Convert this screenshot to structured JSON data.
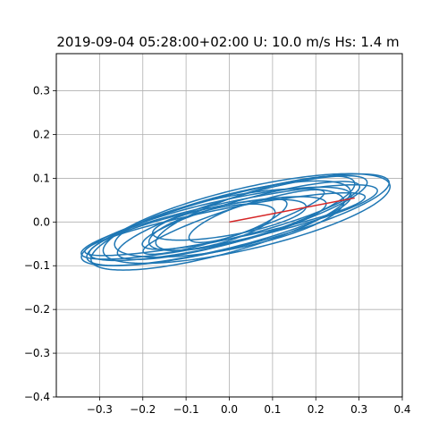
{
  "chart_data": {
    "type": "line",
    "title": "2019-09-04 05:28:00+02:00 U: 10.0 m/s Hs: 1.4 m",
    "xlabel": "",
    "ylabel": "",
    "xlim": [
      -0.4,
      0.4
    ],
    "ylim": [
      -0.4,
      0.385
    ],
    "xticks": [
      -0.3,
      -0.2,
      -0.1,
      0.0,
      0.1,
      0.2,
      0.3,
      0.4
    ],
    "yticks": [
      -0.4,
      -0.3,
      -0.2,
      -0.1,
      0.0,
      0.1,
      0.2,
      0.3
    ],
    "xtick_labels": [
      "−0.3",
      "−0.2",
      "−0.1",
      "0.0",
      "0.1",
      "0.2",
      "0.3",
      "0.4"
    ],
    "ytick_labels": [
      "−0.4",
      "−0.3",
      "−0.2",
      "−0.1",
      "0.0",
      "0.1",
      "0.2",
      "0.3"
    ],
    "grid": true,
    "series": [
      {
        "color": "#1f77b4",
        "ellipses": [
          {
            "cx": 0.0,
            "cy": 0.0,
            "a": 0.35,
            "b": 0.045,
            "angle": 12
          },
          {
            "cx": 0.02,
            "cy": 0.005,
            "a": 0.36,
            "b": 0.06,
            "angle": 14
          },
          {
            "cx": -0.01,
            "cy": -0.005,
            "a": 0.33,
            "b": 0.035,
            "angle": 11
          },
          {
            "cx": 0.03,
            "cy": 0.01,
            "a": 0.3,
            "b": 0.05,
            "angle": 16
          },
          {
            "cx": -0.03,
            "cy": -0.01,
            "a": 0.32,
            "b": 0.055,
            "angle": 13
          },
          {
            "cx": 0.05,
            "cy": 0.015,
            "a": 0.26,
            "b": 0.04,
            "angle": 15
          },
          {
            "cx": -0.05,
            "cy": -0.015,
            "a": 0.28,
            "b": 0.045,
            "angle": 12
          },
          {
            "cx": 0.01,
            "cy": 0.0,
            "a": 0.22,
            "b": 0.03,
            "angle": 18
          },
          {
            "cx": 0.0,
            "cy": 0.005,
            "a": 0.18,
            "b": 0.035,
            "angle": 10
          },
          {
            "cx": 0.04,
            "cy": 0.008,
            "a": 0.34,
            "b": 0.07,
            "angle": 13
          },
          {
            "cx": -0.02,
            "cy": -0.008,
            "a": 0.31,
            "b": 0.065,
            "angle": 15
          },
          {
            "cx": 0.06,
            "cy": 0.02,
            "a": 0.24,
            "b": 0.05,
            "angle": 17
          },
          {
            "cx": -0.04,
            "cy": -0.012,
            "a": 0.15,
            "b": 0.04,
            "angle": 14
          },
          {
            "cx": 0.02,
            "cy": 0.003,
            "a": 0.12,
            "b": 0.03,
            "angle": 20
          },
          {
            "cx": 0.0,
            "cy": -0.002,
            "a": 0.27,
            "b": 0.06,
            "angle": 11
          }
        ]
      },
      {
        "color": "#d62728",
        "x": [
          0.0,
          0.29
        ],
        "y": [
          0.0,
          0.055
        ]
      }
    ]
  }
}
